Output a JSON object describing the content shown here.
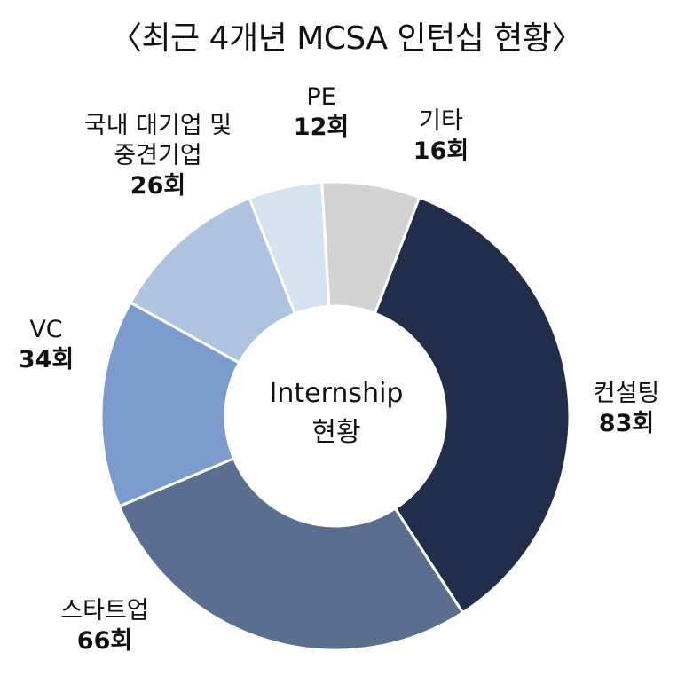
{
  "title": "〈최근 4개년 MCSA 인턴십 현황〉",
  "center_text": [
    "Internship",
    "현황"
  ],
  "chart_data": {
    "type": "pie",
    "title": "〈최근 4개년 MCSA 인턴십 현황〉",
    "donut": true,
    "categories": [
      "컨설팅",
      "스타트업",
      "VC",
      "국내 대기업 및 중견기업",
      "PE",
      "기타"
    ],
    "values": [
      83,
      66,
      34,
      26,
      12,
      16
    ],
    "value_labels": [
      "83회",
      "66회",
      "34회",
      "26회",
      "12회",
      "16회"
    ],
    "name_lines": [
      [
        "컨설팅"
      ],
      [
        "스타트업"
      ],
      [
        "VC"
      ],
      [
        "국내 대기업 및",
        "중견기업"
      ],
      [
        "PE"
      ],
      [
        "기타"
      ]
    ],
    "colors": [
      "#202e4c",
      "#5a6f8f",
      "#7b9ccd",
      "#aec3df",
      "#d5e2f0",
      "#d3d3d3"
    ]
  }
}
